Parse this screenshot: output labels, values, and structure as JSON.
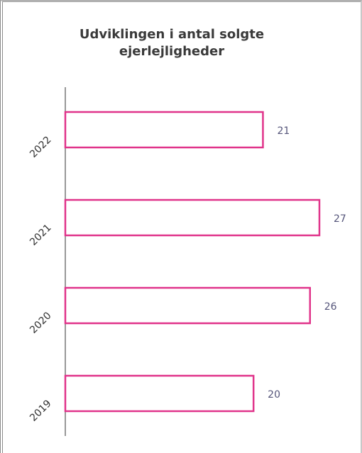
{
  "chart_data": {
    "type": "barh",
    "title": "Udviklingen i antal solgte ejerlejligheder",
    "categories": [
      "2022",
      "2021",
      "2020",
      "2019"
    ],
    "values": [
      21,
      27,
      26,
      20
    ],
    "color": "#e0338a",
    "grid": false
  }
}
